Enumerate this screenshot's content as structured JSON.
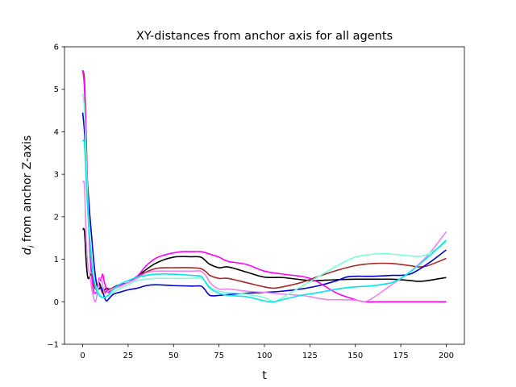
{
  "chart_data": {
    "type": "line",
    "title": "XY-distances from anchor axis for all agents",
    "xlabel": "t",
    "ylabel_main": "d",
    "ylabel_sub": "i",
    "ylabel_rest": " from anchor Z-axis",
    "xlim": [
      -10,
      210
    ],
    "ylim": [
      -1,
      6
    ],
    "xticks": [
      0,
      25,
      50,
      75,
      100,
      125,
      150,
      175,
      200
    ],
    "yticks": [
      -1,
      0,
      1,
      2,
      3,
      4,
      5,
      6
    ],
    "grid": false,
    "series": [
      {
        "color": "#000000",
        "x": [
          0,
          1,
          2,
          3,
          5,
          7,
          9,
          11,
          13,
          15,
          20,
          25,
          30,
          40,
          50,
          60,
          65,
          68,
          70,
          75,
          80,
          90,
          100,
          110,
          120,
          125,
          130,
          140,
          150,
          160,
          170,
          180,
          185,
          190,
          200
        ],
        "y": [
          1.7,
          1.65,
          0.9,
          0.55,
          0.65,
          0.3,
          0.45,
          0.25,
          0.32,
          0.3,
          0.4,
          0.45,
          0.6,
          0.9,
          1.05,
          1.06,
          1.05,
          0.95,
          0.88,
          0.8,
          0.82,
          0.7,
          0.58,
          0.57,
          0.52,
          0.5,
          0.5,
          0.52,
          0.53,
          0.53,
          0.53,
          0.5,
          0.48,
          0.5,
          0.57
        ]
      },
      {
        "color": "#a52a2a",
        "x": [
          0,
          1,
          2,
          3,
          4,
          5,
          7,
          9,
          11,
          13,
          15,
          20,
          25,
          30,
          40,
          50,
          60,
          65,
          68,
          70,
          75,
          80,
          90,
          100,
          105,
          110,
          120,
          130,
          140,
          150,
          160,
          170,
          180,
          185,
          190,
          200
        ],
        "y": [
          5.45,
          5.2,
          3.8,
          2.2,
          1.2,
          0.6,
          0.3,
          0.4,
          0.2,
          0.25,
          0.3,
          0.38,
          0.45,
          0.6,
          0.78,
          0.8,
          0.8,
          0.78,
          0.7,
          0.62,
          0.55,
          0.55,
          0.45,
          0.35,
          0.32,
          0.35,
          0.45,
          0.6,
          0.74,
          0.85,
          0.9,
          0.9,
          0.85,
          0.82,
          0.85,
          1.02
        ]
      },
      {
        "color": "#0000cd",
        "x": [
          0,
          1,
          2,
          3,
          4,
          5,
          6,
          7,
          8,
          9,
          10,
          11,
          12,
          13,
          14,
          15,
          17,
          20,
          25,
          30,
          35,
          40,
          50,
          60,
          65,
          67,
          70,
          75,
          80,
          90,
          100,
          110,
          120,
          130,
          140,
          145,
          150,
          155,
          160,
          170,
          180,
          190,
          200
        ],
        "y": [
          4.45,
          4.0,
          3.2,
          2.6,
          2.0,
          1.5,
          1.0,
          0.6,
          0.35,
          0.3,
          0.35,
          0.25,
          0.1,
          0.02,
          0.05,
          0.1,
          0.18,
          0.22,
          0.28,
          0.32,
          0.38,
          0.4,
          0.38,
          0.37,
          0.37,
          0.3,
          0.15,
          0.15,
          0.17,
          0.2,
          0.22,
          0.25,
          0.3,
          0.38,
          0.5,
          0.58,
          0.6,
          0.6,
          0.6,
          0.62,
          0.65,
          0.9,
          1.22
        ]
      },
      {
        "color": "#ff00ff",
        "x": [
          0,
          1,
          2,
          3,
          4,
          5,
          6,
          7,
          8,
          9,
          10,
          11,
          12,
          14,
          16,
          20,
          25,
          30,
          35,
          40,
          45,
          50,
          55,
          60,
          65,
          70,
          75,
          80,
          90,
          100,
          110,
          120,
          125,
          130,
          140,
          150,
          155,
          160,
          170,
          180,
          190,
          200
        ],
        "y": [
          5.45,
          5.0,
          3.5,
          2.2,
          1.2,
          0.6,
          0.25,
          0.2,
          0.28,
          0.55,
          0.5,
          0.65,
          0.45,
          0.22,
          0.3,
          0.38,
          0.45,
          0.6,
          0.85,
          1.02,
          1.1,
          1.15,
          1.18,
          1.18,
          1.18,
          1.12,
          1.05,
          0.95,
          0.88,
          0.72,
          0.65,
          0.6,
          0.55,
          0.45,
          0.2,
          0.05,
          0.0,
          0.0,
          0.0,
          0.0,
          0.0,
          0.0
        ]
      },
      {
        "color": "#ee82ee",
        "x": [
          0,
          1,
          2,
          3,
          4,
          5,
          6,
          7,
          8,
          9,
          10,
          11,
          12,
          14,
          16,
          20,
          25,
          30,
          35,
          40,
          50,
          60,
          65,
          68,
          70,
          75,
          80,
          90,
          100,
          110,
          120,
          125,
          130,
          135,
          140,
          150,
          155,
          160,
          170,
          180,
          190,
          200
        ],
        "y": [
          2.82,
          2.7,
          1.4,
          0.8,
          0.6,
          0.3,
          0.1,
          0.0,
          0.2,
          0.5,
          0.55,
          0.4,
          0.2,
          0.25,
          0.3,
          0.35,
          0.45,
          0.55,
          0.68,
          0.72,
          0.72,
          0.72,
          0.72,
          0.6,
          0.45,
          0.3,
          0.3,
          0.25,
          0.22,
          0.18,
          0.15,
          0.12,
          0.08,
          0.05,
          0.05,
          0.04,
          0.0,
          0.1,
          0.4,
          0.7,
          1.1,
          1.65
        ]
      },
      {
        "color": "#7fffd4",
        "x": [
          0,
          1,
          2,
          3,
          4,
          5,
          6,
          7,
          8,
          9,
          10,
          11,
          12,
          14,
          16,
          20,
          25,
          30,
          40,
          50,
          60,
          65,
          68,
          70,
          75,
          80,
          90,
          100,
          105,
          110,
          120,
          130,
          140,
          150,
          160,
          165,
          170,
          180,
          185,
          190,
          200
        ],
        "y": [
          4.9,
          4.5,
          3.3,
          2.2,
          1.5,
          1.0,
          0.6,
          0.4,
          0.3,
          0.2,
          0.15,
          0.1,
          0.1,
          0.15,
          0.2,
          0.3,
          0.4,
          0.5,
          0.55,
          0.55,
          0.55,
          0.55,
          0.45,
          0.35,
          0.25,
          0.22,
          0.18,
          0.1,
          0.0,
          0.1,
          0.35,
          0.6,
          0.85,
          1.05,
          1.12,
          1.13,
          1.12,
          1.08,
          1.07,
          1.12,
          1.4
        ]
      },
      {
        "color": "#00e5ee",
        "x": [
          0,
          1,
          2,
          3,
          4,
          5,
          6,
          7,
          8,
          9,
          10,
          11,
          12,
          14,
          16,
          20,
          25,
          30,
          35,
          40,
          50,
          60,
          65,
          67,
          70,
          75,
          80,
          90,
          100,
          105,
          110,
          120,
          130,
          140,
          150,
          160,
          170,
          175,
          180,
          190,
          200
        ],
        "y": [
          3.8,
          3.7,
          2.8,
          2.0,
          1.4,
          0.9,
          0.55,
          0.35,
          0.22,
          0.15,
          0.12,
          0.1,
          0.1,
          0.15,
          0.25,
          0.4,
          0.5,
          0.58,
          0.62,
          0.65,
          0.65,
          0.62,
          0.6,
          0.5,
          0.32,
          0.2,
          0.15,
          0.12,
          0.02,
          0.0,
          0.05,
          0.15,
          0.22,
          0.3,
          0.35,
          0.38,
          0.45,
          0.55,
          0.7,
          1.05,
          1.45
        ]
      }
    ]
  }
}
